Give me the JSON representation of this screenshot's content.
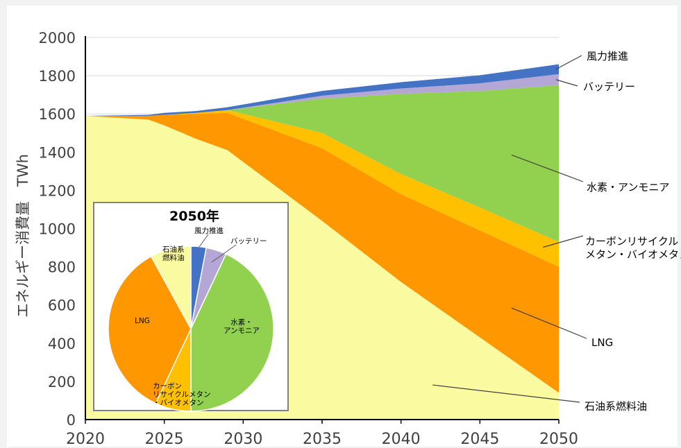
{
  "chart_data": [
    {
      "type": "area",
      "stacked": true,
      "ylabel": "エネルギー消費量　TWh",
      "xlim": [
        2020,
        2050
      ],
      "ylim": [
        0,
        2000
      ],
      "xticks": [
        "2020",
        "2025",
        "2030",
        "2035",
        "2040",
        "2045",
        "2050"
      ],
      "yticks": [
        "0",
        "200",
        "400",
        "600",
        "800",
        "1000",
        "1200",
        "1400",
        "1600",
        "1800",
        "2000"
      ],
      "grid": true,
      "legend": "right-callouts",
      "x": [
        2020,
        2024,
        2025,
        2027,
        2029,
        2035,
        2040,
        2045,
        2050
      ],
      "series": [
        {
          "name": "石油系燃料油",
          "color": "#fafaa0",
          "values": [
            1590,
            1570,
            1540,
            1470,
            1410,
            1040,
            720,
            430,
            140
          ]
        },
        {
          "name": "LNG",
          "color": "#ff9800",
          "values": [
            0,
            20,
            55,
            130,
            195,
            380,
            460,
            560,
            660
          ]
        },
        {
          "name": "カーボンリサイクル\nメタン・バイオメタン",
          "color": "#ffc000",
          "values": [
            0,
            0,
            0,
            5,
            15,
            80,
            105,
            120,
            130
          ]
        },
        {
          "name": "水素・アンモニア",
          "color": "#92d050",
          "values": [
            0,
            0,
            0,
            0,
            0,
            180,
            420,
            610,
            820
          ]
        },
        {
          "name": "バッテリー",
          "color": "#b4a7d6",
          "values": [
            0,
            0,
            0,
            0,
            0,
            15,
            28,
            40,
            58
          ]
        },
        {
          "name": "風力推進",
          "color": "#4472c4",
          "values": [
            0,
            5,
            10,
            10,
            15,
            25,
            33,
            42,
            52
          ]
        }
      ]
    },
    {
      "type": "pie",
      "title": "2050年",
      "slices": [
        {
          "label": "風力推進",
          "value": 3,
          "color": "#4472c4"
        },
        {
          "label": "バッテリー",
          "value": 4,
          "color": "#b4a7d6"
        },
        {
          "label": "水素・\nアンモニア",
          "value": 43,
          "color": "#92d050"
        },
        {
          "label": "カーボン\nリサイクルメタン\n・バイオメタン",
          "value": 7,
          "color": "#ffc000"
        },
        {
          "label": "LNG",
          "value": 35,
          "color": "#ff9800"
        },
        {
          "label": "石油系\n燃料油",
          "value": 8,
          "color": "#fafaa0"
        }
      ]
    }
  ]
}
